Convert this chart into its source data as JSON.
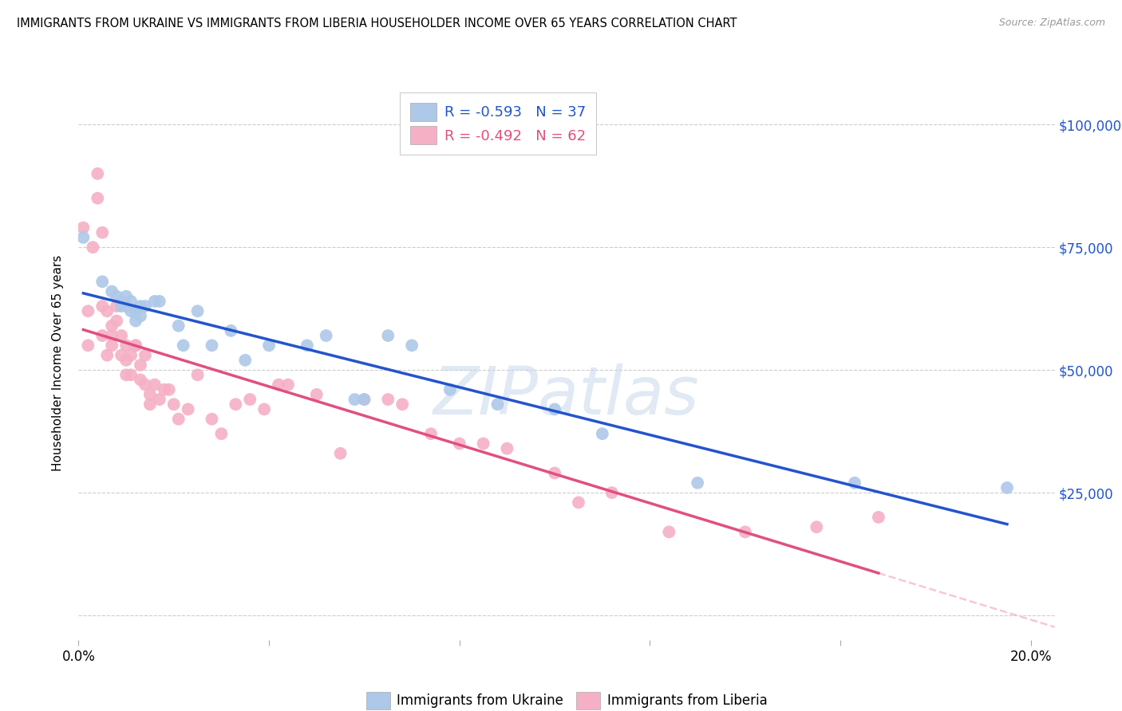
{
  "title": "IMMIGRANTS FROM UKRAINE VS IMMIGRANTS FROM LIBERIA HOUSEHOLDER INCOME OVER 65 YEARS CORRELATION CHART",
  "source": "Source: ZipAtlas.com",
  "ylabel": "Householder Income Over 65 years",
  "ukraine_R": -0.593,
  "ukraine_N": 37,
  "liberia_R": -0.492,
  "liberia_N": 62,
  "ukraine_color": "#adc8e8",
  "liberia_color": "#f5b0c5",
  "ukraine_line_color": "#2255cc",
  "liberia_line_color": "#e05080",
  "watermark": "ZIPatlas",
  "yticks": [
    0,
    25000,
    50000,
    75000,
    100000
  ],
  "ytick_labels": [
    "",
    "$25,000",
    "$50,000",
    "$75,000",
    "$100,000"
  ],
  "xticks": [
    0.0,
    0.04,
    0.08,
    0.12,
    0.16,
    0.2
  ],
  "xlim": [
    0.0,
    0.205
  ],
  "ylim": [
    -5000,
    108000
  ],
  "background_color": "#ffffff",
  "ukraine_x": [
    0.001,
    0.005,
    0.007,
    0.008,
    0.009,
    0.009,
    0.01,
    0.01,
    0.011,
    0.011,
    0.012,
    0.012,
    0.013,
    0.013,
    0.014,
    0.016,
    0.017,
    0.021,
    0.022,
    0.025,
    0.028,
    0.032,
    0.035,
    0.04,
    0.048,
    0.052,
    0.058,
    0.06,
    0.065,
    0.07,
    0.078,
    0.088,
    0.1,
    0.11,
    0.13,
    0.163,
    0.195
  ],
  "ukraine_y": [
    77000,
    68000,
    66000,
    65000,
    64000,
    63000,
    63000,
    65000,
    62000,
    64000,
    60000,
    62000,
    63000,
    61000,
    63000,
    64000,
    64000,
    59000,
    55000,
    62000,
    55000,
    58000,
    52000,
    55000,
    55000,
    57000,
    44000,
    44000,
    57000,
    55000,
    46000,
    43000,
    42000,
    37000,
    27000,
    27000,
    26000
  ],
  "liberia_x": [
    0.001,
    0.002,
    0.002,
    0.003,
    0.004,
    0.004,
    0.005,
    0.005,
    0.005,
    0.006,
    0.006,
    0.007,
    0.007,
    0.007,
    0.008,
    0.008,
    0.009,
    0.009,
    0.01,
    0.01,
    0.01,
    0.011,
    0.011,
    0.012,
    0.012,
    0.013,
    0.013,
    0.014,
    0.014,
    0.015,
    0.015,
    0.016,
    0.017,
    0.018,
    0.019,
    0.02,
    0.021,
    0.023,
    0.025,
    0.028,
    0.03,
    0.033,
    0.036,
    0.039,
    0.042,
    0.044,
    0.05,
    0.055,
    0.06,
    0.065,
    0.068,
    0.074,
    0.08,
    0.085,
    0.09,
    0.1,
    0.105,
    0.112,
    0.124,
    0.14,
    0.155,
    0.168
  ],
  "liberia_y": [
    79000,
    62000,
    55000,
    75000,
    90000,
    85000,
    63000,
    78000,
    57000,
    53000,
    62000,
    59000,
    57000,
    55000,
    63000,
    60000,
    57000,
    53000,
    55000,
    52000,
    49000,
    53000,
    49000,
    55000,
    55000,
    48000,
    51000,
    53000,
    47000,
    43000,
    45000,
    47000,
    44000,
    46000,
    46000,
    43000,
    40000,
    42000,
    49000,
    40000,
    37000,
    43000,
    44000,
    42000,
    47000,
    47000,
    45000,
    33000,
    44000,
    44000,
    43000,
    37000,
    35000,
    35000,
    34000,
    29000,
    23000,
    25000,
    17000,
    17000,
    18000,
    20000
  ]
}
